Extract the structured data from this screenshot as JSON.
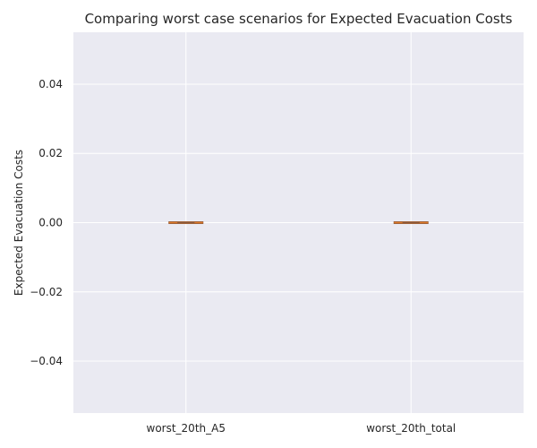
{
  "chart_data": {
    "type": "box",
    "title": "Comparing worst case scenarios for Expected Evacuation Costs",
    "xlabel": "",
    "ylabel": "Expected Evacuation Costs",
    "categories": [
      "worst_20th_A5",
      "worst_20th_total"
    ],
    "series": [
      {
        "min": 0.0,
        "q1": 0.0,
        "median": 0.0,
        "q3": 0.0,
        "max": 0.0
      },
      {
        "min": 0.0,
        "q1": 0.0,
        "median": 0.0,
        "q3": 0.0,
        "max": 0.0
      }
    ],
    "ylim": [
      -0.055,
      0.055
    ],
    "yticks": [
      -0.04,
      -0.02,
      0.0,
      0.02,
      0.04
    ],
    "ytick_labels": [
      "−0.04",
      "−0.02",
      "0.00",
      "0.02",
      "0.04"
    ],
    "grid": true,
    "colors": {
      "plot_background": "#eaeaf2",
      "grid": "#ffffff",
      "box_edge": "#8c5a3c",
      "median": "#e07b2a"
    }
  }
}
